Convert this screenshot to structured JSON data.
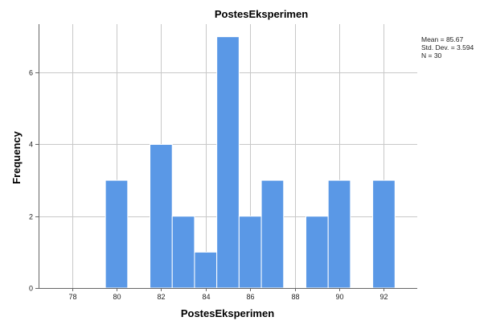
{
  "chart_data": {
    "type": "bar",
    "title": "PostesEksperimen",
    "xlabel": "PostesEksperimen",
    "ylabel": "Frequency",
    "bin_width": 1,
    "bins": [
      {
        "start": 79.5,
        "end": 80.5,
        "value": 3
      },
      {
        "start": 81.5,
        "end": 82.5,
        "value": 4
      },
      {
        "start": 82.5,
        "end": 83.5,
        "value": 2
      },
      {
        "start": 83.5,
        "end": 84.5,
        "value": 1
      },
      {
        "start": 84.5,
        "end": 85.5,
        "value": 7
      },
      {
        "start": 85.5,
        "end": 86.5,
        "value": 2
      },
      {
        "start": 86.5,
        "end": 87.5,
        "value": 3
      },
      {
        "start": 88.5,
        "end": 89.5,
        "value": 2
      },
      {
        "start": 89.5,
        "end": 90.5,
        "value": 3
      },
      {
        "start": 91.5,
        "end": 92.5,
        "value": 3
      }
    ],
    "x_ticks": [
      78,
      80,
      82,
      84,
      86,
      88,
      90,
      92
    ],
    "x_tick_labels": [
      "78",
      "80",
      "82",
      "84",
      "86",
      "88",
      "90",
      "92"
    ],
    "y_ticks": [
      0,
      2,
      4,
      6
    ],
    "y_tick_labels": [
      "0",
      "2",
      "4",
      "6"
    ],
    "xlim": [
      76.5,
      93.5
    ],
    "ylim": [
      0,
      7.35
    ],
    "grid": true,
    "bar_color": "#5a98e6",
    "stats": {
      "mean": "Mean = 85.67",
      "std_dev": "Std. Dev. = 3.594",
      "n": "N = 30"
    },
    "stats_placement": "top-right"
  }
}
